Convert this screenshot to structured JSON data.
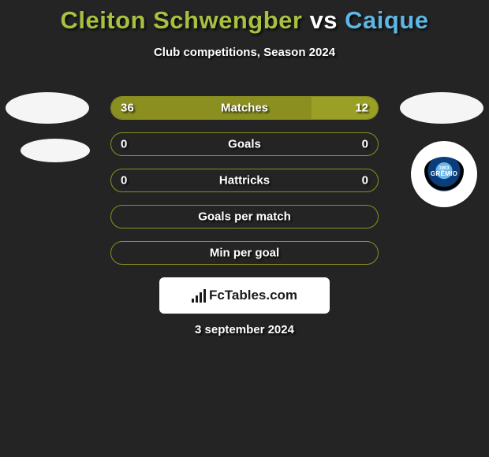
{
  "title": {
    "player_a": "Cleiton Schwengber",
    "vs": "vs",
    "player_b": "Caique",
    "color_a": "#a6c040",
    "color_vs": "#ffffff",
    "color_b": "#5eb6e4"
  },
  "subtitle": "Club competitions, Season 2024",
  "colors": {
    "background": "#242424",
    "bar_border": "#8a8f20",
    "fill_a": "#8a8f20",
    "fill_b": "#9aa025",
    "text": "#ffffff"
  },
  "stats": [
    {
      "label": "Matches",
      "val_a": "36",
      "val_b": "12",
      "pct_a": 75,
      "pct_b": 25
    },
    {
      "label": "Goals",
      "val_a": "0",
      "val_b": "0",
      "pct_a": 0,
      "pct_b": 0
    },
    {
      "label": "Hattricks",
      "val_a": "0",
      "val_b": "0",
      "pct_a": 0,
      "pct_b": 0
    },
    {
      "label": "Goals per match",
      "val_a": "",
      "val_b": "",
      "pct_a": 0,
      "pct_b": 0
    },
    {
      "label": "Min per goal",
      "val_a": "",
      "val_b": "",
      "pct_a": 0,
      "pct_b": 0
    }
  ],
  "watermark": "FcTables.com",
  "date": "3 september 2024",
  "club_b": {
    "name": "GRÊMIO",
    "year": "1903"
  }
}
